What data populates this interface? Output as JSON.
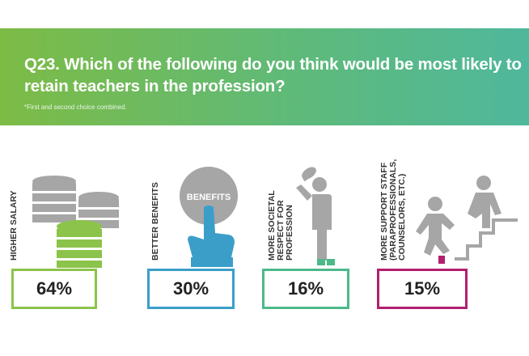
{
  "title": "Q23. Which of the following do you think would be most likely to retain teachers in the profession?",
  "note": "*First and second choice combined.",
  "colors": {
    "banner_start": "#7dbb45",
    "banner_end": "#4fb79c",
    "salary": "#8cc34a",
    "benefits": "#3a9ec9",
    "respect": "#4cb98a",
    "support": "#b21f6e",
    "icon_gray": "#a6a6a6"
  },
  "chart_data": {
    "type": "bar",
    "categories": [
      "HIGHER SALARY",
      "BETTER BENEFITS",
      "MORE SOCIETAL RESPECT FOR PROFESSION",
      "MORE SUPPORT STAFF (PARAPROFESSIONALS, COUNSELORS, ETC.)"
    ],
    "values": [
      64,
      30,
      16,
      15
    ],
    "unit": "%"
  },
  "items": [
    {
      "label_lines": [
        "HIGHER SALARY"
      ],
      "value_text": "64%",
      "icon": "money-stack-icon"
    },
    {
      "label_lines": [
        "BETTER BENEFITS"
      ],
      "value_text": "30%",
      "icon": "benefits-button-icon",
      "icon_text": "BENEFITS"
    },
    {
      "label_lines": [
        "MORE SOCIETAL",
        "RESPECT FOR",
        "PROFESSION"
      ],
      "value_text": "16%",
      "icon": "person-tipping-hat-icon"
    },
    {
      "label_lines": [
        "MORE SUPPORT STAFF",
        "(PARAPROFESSIONALS,",
        "COUNSELORS, ETC.)"
      ],
      "value_text": "15%",
      "icon": "helping-climb-stairs-icon"
    }
  ]
}
